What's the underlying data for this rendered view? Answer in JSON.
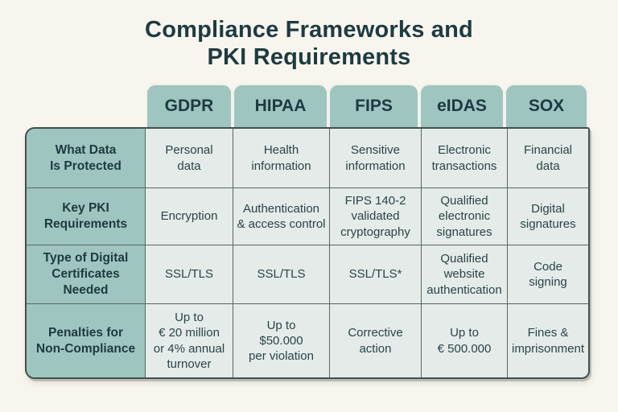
{
  "chart_data": {
    "type": "table",
    "title": "Compliance Frameworks and\nPKI Requirements",
    "columns": [
      "GDPR",
      "HIPAA",
      "FIPS",
      "eIDAS",
      "SOX"
    ],
    "rows": [
      {
        "label": "What Data\nIs Protected",
        "cells": [
          "Personal\ndata",
          "Health\ninformation",
          "Sensitive\ninformation",
          "Electronic\ntransactions",
          "Financial\ndata"
        ]
      },
      {
        "label": "Key PKI\nRequirements",
        "cells": [
          "Encryption",
          "Authentication\n& access control",
          "FIPS 140-2\nvalidated\ncryptography",
          "Qualified\nelectronic\nsignatures",
          "Digital\nsignatures"
        ]
      },
      {
        "label": "Type of Digital\nCertificates\nNeeded",
        "cells": [
          "SSL/TLS",
          "SSL/TLS",
          "SSL/TLS*",
          "Qualified\nwebsite\nauthentication",
          "Code\nsigning"
        ]
      },
      {
        "label": "Penalties for\nNon-Compliance",
        "cells": [
          "Up to\n€ 20 million\nor 4% annual\nturnover",
          "Up to\n$50.000\nper violation",
          "Corrective\naction",
          "Up to\n€ 500.000",
          "Fines &\nimprisonment"
        ]
      }
    ],
    "layout_hints": {
      "header_position": "top-tabs",
      "row_label_column": "left",
      "grid": "on"
    }
  },
  "colors": {
    "page_background": "#f8f5ee",
    "teal_header": "#9fc5c0",
    "cell_background": "#e4ebe8",
    "grid_line": "#5a6663",
    "outer_border": "#44504d",
    "dark_text": "#1c3a40"
  }
}
